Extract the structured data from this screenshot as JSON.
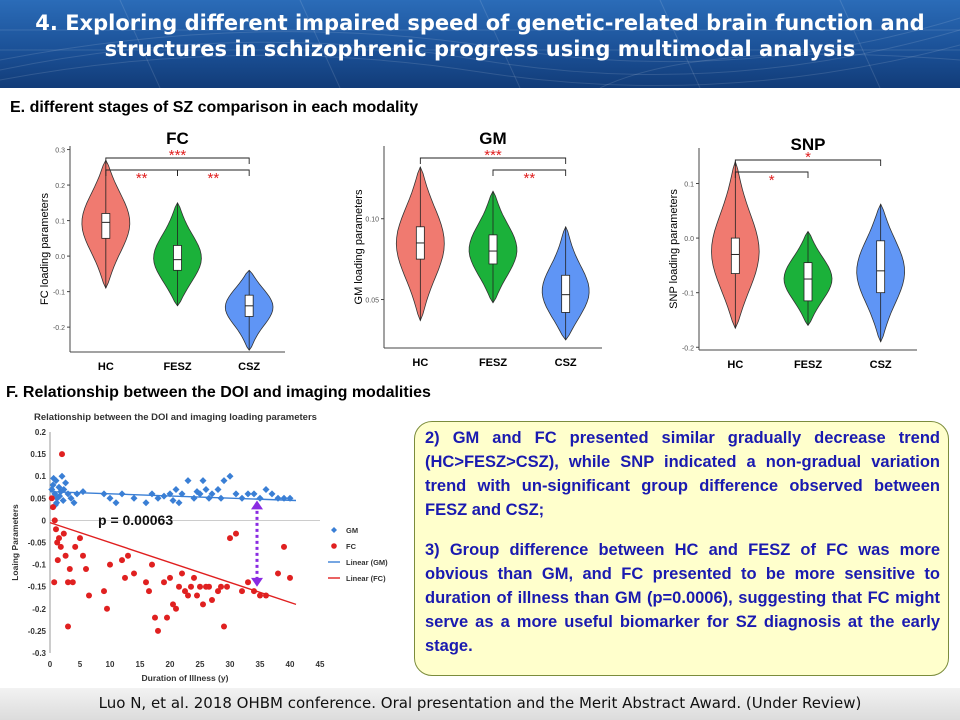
{
  "banner": {
    "title_line1": "4. Exploring different impaired speed of genetic-related brain function and",
    "title_line2": "structures in schizophrenic progress using multimodal analysis"
  },
  "section_e": {
    "label": "E. different stages of SZ comparison in each modality"
  },
  "section_f": {
    "label": "F. Relationship between the DOI and imaging modalities"
  },
  "chart_data": [
    {
      "type": "violin",
      "title": "FC",
      "ylabel": "FC loading parameters",
      "categories": [
        "HC",
        "FESZ",
        "CSZ"
      ],
      "yticks": [
        "0.3",
        "0.2",
        "0.1",
        "0.0",
        "-0.1",
        "-0.2"
      ],
      "ylim": [
        -0.27,
        0.31
      ],
      "colors": [
        "#f07a70",
        "#1bb13a",
        "#5f95f5"
      ],
      "groups": [
        {
          "name": "HC",
          "min": -0.09,
          "q1": 0.05,
          "median": 0.095,
          "q3": 0.12,
          "max": 0.27
        },
        {
          "name": "FESZ",
          "min": -0.14,
          "q1": -0.04,
          "median": -0.01,
          "q3": 0.03,
          "max": 0.15
        },
        {
          "name": "CSZ",
          "min": -0.265,
          "q1": -0.17,
          "median": -0.14,
          "q3": -0.11,
          "max": -0.04
        }
      ],
      "significance": [
        {
          "pair": [
            "HC",
            "FESZ"
          ],
          "label": "**"
        },
        {
          "pair": [
            "HC",
            "CSZ"
          ],
          "label": "***"
        },
        {
          "pair": [
            "FESZ",
            "CSZ"
          ],
          "label": "**"
        }
      ]
    },
    {
      "type": "violin",
      "title": "GM",
      "ylabel": "GM loading parameters",
      "categories": [
        "HC",
        "FESZ",
        "CSZ"
      ],
      "yticks": [
        "0.10",
        "0.05"
      ],
      "ylim": [
        0.02,
        0.145
      ],
      "colors": [
        "#f07a70",
        "#1bb13a",
        "#5f95f5"
      ],
      "groups": [
        {
          "name": "HC",
          "min": 0.037,
          "q1": 0.075,
          "median": 0.085,
          "q3": 0.095,
          "max": 0.132
        },
        {
          "name": "FESZ",
          "min": 0.048,
          "q1": 0.072,
          "median": 0.08,
          "q3": 0.09,
          "max": 0.117
        },
        {
          "name": "CSZ",
          "min": 0.025,
          "q1": 0.042,
          "median": 0.053,
          "q3": 0.065,
          "max": 0.095
        }
      ],
      "significance": [
        {
          "pair": [
            "HC",
            "CSZ"
          ],
          "label": "***"
        },
        {
          "pair": [
            "FESZ",
            "CSZ"
          ],
          "label": "**"
        }
      ]
    },
    {
      "type": "violin",
      "title": "SNP",
      "ylabel": "SNP loading parameters",
      "categories": [
        "HC",
        "FESZ",
        "CSZ"
      ],
      "yticks": [
        "0.1",
        "0.0",
        "-0.1",
        "-0.2"
      ],
      "ylim": [
        -0.205,
        0.165
      ],
      "colors": [
        "#f07a70",
        "#1bb13a",
        "#5f95f5"
      ],
      "groups": [
        {
          "name": "HC",
          "min": -0.165,
          "q1": -0.065,
          "median": -0.03,
          "q3": 0.0,
          "max": 0.14
        },
        {
          "name": "FESZ",
          "min": -0.16,
          "q1": -0.115,
          "median": -0.075,
          "q3": -0.045,
          "max": 0.012
        },
        {
          "name": "CSZ",
          "min": -0.19,
          "q1": -0.1,
          "median": -0.06,
          "q3": -0.005,
          "max": 0.062
        }
      ],
      "significance": [
        {
          "pair": [
            "HC",
            "FESZ"
          ],
          "label": "*"
        },
        {
          "pair": [
            "HC",
            "CSZ"
          ],
          "label": "*"
        }
      ]
    },
    {
      "type": "scatter",
      "title": "Relationship between the DOI and imaging loading parameters",
      "xlabel": "Duration of Illness (y)",
      "ylabel": "Loaing Parameters",
      "xlim": [
        0,
        45
      ],
      "ylim": [
        -0.3,
        0.2
      ],
      "xticks": [
        "0",
        "5",
        "10",
        "15",
        "20",
        "25",
        "30",
        "35",
        "40",
        "45"
      ],
      "yticks": [
        "0.2",
        "0.15",
        "0.1",
        "0.05",
        "0",
        "-0.05",
        "-0.1",
        "-0.15",
        "-0.2",
        "-0.25",
        "-0.3"
      ],
      "annotation": "p = 0.00063",
      "legend": {
        "placement": "right",
        "entries": [
          "GM",
          "FC",
          "Linear (GM)",
          "Linear (FC)"
        ]
      },
      "series": [
        {
          "name": "GM",
          "marker": "diamond",
          "color": "#3a7fd5",
          "points": [
            [
              0.3,
              0.07
            ],
            [
              0.5,
              0.08
            ],
            [
              0.8,
              0.06
            ],
            [
              1,
              0.09
            ],
            [
              1.2,
              0.05
            ],
            [
              1.5,
              0.075
            ],
            [
              1.8,
              0.065
            ],
            [
              2,
              0.1
            ],
            [
              2.3,
              0.07
            ],
            [
              2.6,
              0.085
            ],
            [
              3,
              0.06
            ],
            [
              3.5,
              0.05
            ],
            [
              4,
              0.04
            ],
            [
              0.6,
              0.095
            ],
            [
              1.1,
              0.04
            ],
            [
              1.6,
              0.055
            ],
            [
              2.2,
              0.045
            ],
            [
              0.9,
              0.035
            ],
            [
              4.5,
              0.06
            ],
            [
              5.5,
              0.065
            ],
            [
              9,
              0.06
            ],
            [
              10,
              0.05
            ],
            [
              11,
              0.04
            ],
            [
              12,
              0.06
            ],
            [
              14,
              0.05
            ],
            [
              16,
              0.04
            ],
            [
              17,
              0.06
            ],
            [
              18,
              0.05
            ],
            [
              19,
              0.055
            ],
            [
              20,
              0.06
            ],
            [
              20.5,
              0.045
            ],
            [
              21,
              0.07
            ],
            [
              21.5,
              0.04
            ],
            [
              22,
              0.06
            ],
            [
              23,
              0.09
            ],
            [
              24,
              0.05
            ],
            [
              24.5,
              0.065
            ],
            [
              25,
              0.06
            ],
            [
              25.5,
              0.09
            ],
            [
              26,
              0.07
            ],
            [
              26.5,
              0.05
            ],
            [
              27,
              0.06
            ],
            [
              28,
              0.07
            ],
            [
              28.5,
              0.05
            ],
            [
              29,
              0.09
            ],
            [
              30,
              0.1
            ],
            [
              31,
              0.06
            ],
            [
              32,
              0.05
            ],
            [
              33,
              0.06
            ],
            [
              34,
              0.06
            ],
            [
              35,
              0.05
            ],
            [
              36,
              0.07
            ],
            [
              37,
              0.06
            ],
            [
              38,
              0.05
            ],
            [
              39,
              0.05
            ],
            [
              40,
              0.05
            ]
          ]
        },
        {
          "name": "FC",
          "marker": "circle",
          "color": "#e02020",
          "points": [
            [
              0.3,
              0.05
            ],
            [
              0.5,
              0.03
            ],
            [
              0.8,
              0
            ],
            [
              1,
              -0.02
            ],
            [
              1.2,
              -0.05
            ],
            [
              1.5,
              -0.04
            ],
            [
              1.8,
              -0.06
            ],
            [
              2,
              0.15
            ],
            [
              2.3,
              -0.03
            ],
            [
              2.6,
              -0.08
            ],
            [
              3,
              -0.14
            ],
            [
              3.3,
              -0.11
            ],
            [
              3.8,
              -0.14
            ],
            [
              4.2,
              -0.06
            ],
            [
              5,
              -0.04
            ],
            [
              5.5,
              -0.08
            ],
            [
              6,
              -0.11
            ],
            [
              6.5,
              -0.17
            ],
            [
              0.7,
              -0.14
            ],
            [
              1.3,
              -0.09
            ],
            [
              3,
              -0.24
            ],
            [
              9,
              -0.16
            ],
            [
              9.5,
              -0.2
            ],
            [
              10,
              -0.1
            ],
            [
              12,
              -0.09
            ],
            [
              12.5,
              -0.13
            ],
            [
              13,
              -0.08
            ],
            [
              14,
              -0.12
            ],
            [
              16,
              -0.14
            ],
            [
              16.5,
              -0.16
            ],
            [
              17,
              -0.1
            ],
            [
              17.5,
              -0.22
            ],
            [
              18,
              -0.25
            ],
            [
              19,
              -0.14
            ],
            [
              19.5,
              -0.22
            ],
            [
              20,
              -0.13
            ],
            [
              20.5,
              -0.19
            ],
            [
              21,
              -0.2
            ],
            [
              21.5,
              -0.15
            ],
            [
              22,
              -0.12
            ],
            [
              22.5,
              -0.16
            ],
            [
              23,
              -0.17
            ],
            [
              23.5,
              -0.15
            ],
            [
              24,
              -0.13
            ],
            [
              24.5,
              -0.17
            ],
            [
              25,
              -0.15
            ],
            [
              25.5,
              -0.19
            ],
            [
              26,
              -0.15
            ],
            [
              26.5,
              -0.15
            ],
            [
              27,
              -0.18
            ],
            [
              28,
              -0.16
            ],
            [
              28.5,
              -0.15
            ],
            [
              29,
              -0.24
            ],
            [
              29.5,
              -0.15
            ],
            [
              30,
              -0.04
            ],
            [
              31,
              -0.03
            ],
            [
              32,
              -0.16
            ],
            [
              33,
              -0.14
            ],
            [
              34,
              -0.16
            ],
            [
              35,
              -0.17
            ],
            [
              36,
              -0.17
            ],
            [
              38,
              -0.12
            ],
            [
              39,
              -0.06
            ],
            [
              40,
              -0.13
            ]
          ]
        }
      ],
      "trendlines": [
        {
          "name": "Linear (GM)",
          "color": "#3a7fd5",
          "from": [
            0,
            0.065
          ],
          "to": [
            41,
            0.045
          ]
        },
        {
          "name": "Linear (FC)",
          "color": "#e02020",
          "from": [
            0,
            -0.005
          ],
          "to": [
            41,
            -0.19
          ]
        }
      ]
    }
  ],
  "textbox": {
    "para1": "2) GM and FC presented similar gradually decrease trend (HC>FESZ>CSZ), while SNP indicated a non-gradual variation trend with un-significant group difference observed between FESZ and CSZ;",
    "para2": "3) Group difference between HC and FESZ of FC was more obvious than GM, and FC presented to be more sensitive to duration of illness than GM (p=0.0006), suggesting that FC might serve as a more useful biomarker for SZ diagnosis at the early stage."
  },
  "footer": {
    "text": "Luo N,  et al. 2018 OHBM conference. Oral presentation and the Merit Abstract Award. (Under Review)"
  }
}
